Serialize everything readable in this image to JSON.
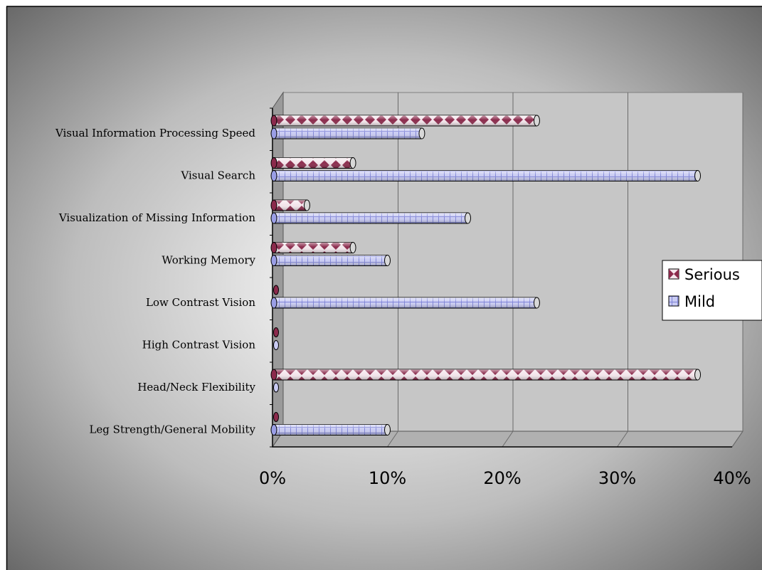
{
  "chart_data": {
    "type": "bar",
    "orientation": "horizontal",
    "style": "3d-cylinder",
    "categories": [
      "Visual Information Processing Speed",
      "Visual Search",
      "Visualization of Missing Information",
      "Working Memory",
      "Low Contrast Vision",
      "High Contrast Vision",
      "Head/Neck Flexibility",
      "Leg Strength/General Mobility"
    ],
    "series": [
      {
        "name": "Serious",
        "values": [
          23,
          7,
          3,
          7,
          0,
          0,
          37,
          0
        ],
        "color": "#8b2a4c"
      },
      {
        "name": "Mild",
        "values": [
          13,
          37,
          17,
          10,
          23,
          0,
          0,
          10
        ],
        "color": "#9a9ee6"
      }
    ],
    "xlim": [
      0,
      40
    ],
    "x_ticks": [
      "0%",
      "10%",
      "20%",
      "30%",
      "40%"
    ],
    "grid": true,
    "legend_position": "right"
  }
}
